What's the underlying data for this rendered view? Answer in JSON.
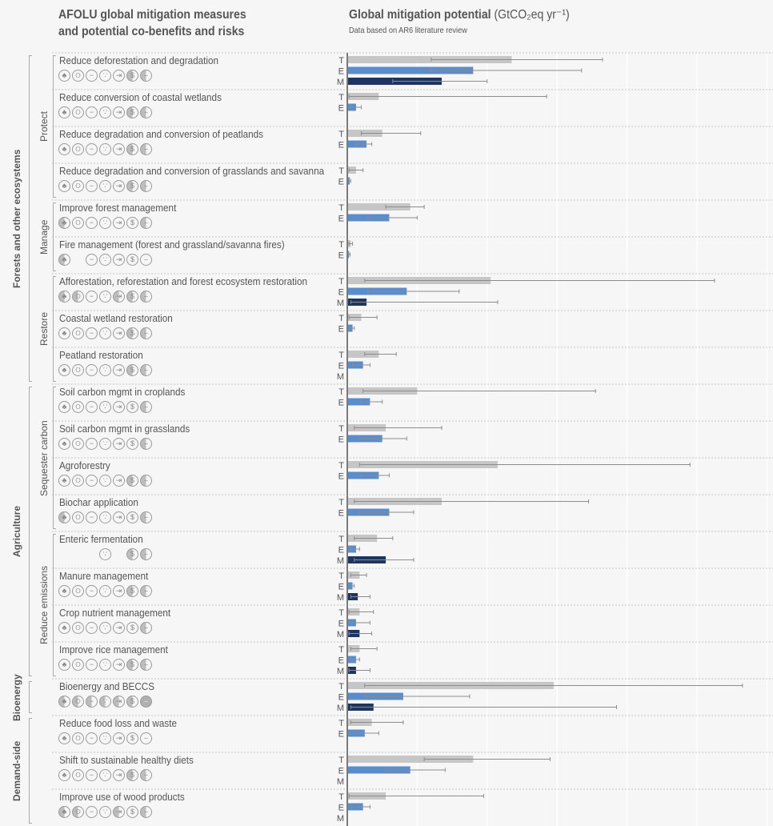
{
  "left_header": {
    "line1": "AFOLU global mitigation measures",
    "line2": "and potential co-benefits and risks"
  },
  "right_header": {
    "title": "Global mitigation potential",
    "unit": "(GtCO₂eq yr⁻¹)",
    "subtitle": "Data based on AR6 literature review"
  },
  "colors": {
    "T": "#c6c6c6",
    "E": "#5b8dcd",
    "M": "#1e3560",
    "error": "#8c8c8c",
    "background": "#f6f6f6"
  },
  "icon_names": [
    "tree-icon",
    "water-drop-icon",
    "land-water-icon",
    "plant-icon",
    "arrow-in-icon",
    "dollar-icon",
    "food-bowl-icon"
  ],
  "icon_glyphs": [
    "♣",
    "୦",
    "−",
    "∵",
    "⇥",
    "$",
    "⌣"
  ],
  "groups": [
    {
      "label": "Forests and other ecosystems",
      "rows": [
        0,
        8
      ]
    },
    {
      "label": "Agriculture",
      "rows": [
        9,
        16
      ]
    },
    {
      "label": "Bioenergy",
      "rows": [
        17,
        17
      ]
    },
    {
      "label": "Demand-side",
      "rows": [
        18,
        20
      ]
    }
  ],
  "subgroups": [
    {
      "label": "Protect",
      "rows": [
        0,
        3
      ]
    },
    {
      "label": "Manage",
      "rows": [
        4,
        5
      ]
    },
    {
      "label": "Restore",
      "rows": [
        6,
        8
      ]
    },
    {
      "label": "Sequester carbon",
      "rows": [
        9,
        12
      ]
    },
    {
      "label": "Reduce emissions",
      "rows": [
        13,
        16
      ]
    }
  ],
  "chart_data": {
    "type": "bar",
    "orientation": "horizontal",
    "title": "Global mitigation potential",
    "unit": "GtCO2eq yr-1",
    "xlim": [
      0,
      12
    ],
    "grid": true,
    "series_keys": [
      "T",
      "E",
      "M"
    ],
    "icon_state_legend": {
      "o": "outline",
      "h": "half shaded",
      "f": "full shaded",
      "-": "absent"
    },
    "rows": [
      {
        "label": "Reduce deforestation and degradation",
        "icons": "ooooohh",
        "T": [
          4.7,
          2.4,
          7.3
        ],
        "E": [
          3.6,
          2.4,
          6.7
        ],
        "M": [
          2.7,
          1.3,
          4.0
        ]
      },
      {
        "label": "Reduce conversion of coastal wetlands",
        "icons": "ooooohh",
        "T": [
          0.9,
          0.05,
          5.7
        ],
        "E": [
          0.25,
          0.1,
          0.4
        ]
      },
      {
        "label": "Reduce degradation and conversion of peatlands",
        "icons": "ooooohh",
        "T": [
          1.0,
          0.4,
          2.1
        ],
        "E": [
          0.55,
          0.25,
          0.7
        ]
      },
      {
        "label": "Reduce degradation and conversion of grasslands and savanna",
        "icons": "ooooohh",
        "T": [
          0.25,
          0.05,
          0.45
        ],
        "E": [
          0.07,
          0.05,
          0.1
        ]
      },
      {
        "label": "Improve forest management",
        "icons": "hooooohh",
        "T": [
          1.8,
          1.1,
          2.2
        ],
        "E": [
          1.2,
          0.6,
          2.0
        ]
      },
      {
        "label": "Fire management (forest and grassland/savanna fires)",
        "icons": "h-ooooo",
        "T": [
          0.1,
          0.05,
          0.15
        ],
        "E": [
          0.05,
          0.03,
          0.08
        ]
      },
      {
        "label": "Afforestation, reforestation and forest ecosystem restoration",
        "icons": "hhoohhh",
        "T": [
          4.1,
          0.5,
          10.5
        ],
        "E": [
          1.7,
          0.6,
          3.2
        ],
        "M": [
          0.55,
          0.1,
          4.3
        ]
      },
      {
        "label": "Coastal wetland restoration",
        "icons": "ooooohh",
        "T": [
          0.4,
          0.05,
          0.85
        ],
        "E": [
          0.15,
          0.05,
          0.2
        ]
      },
      {
        "label": "Peatland restoration",
        "icons": "ooooohh",
        "T": [
          0.9,
          0.5,
          1.4
        ],
        "E": [
          0.45,
          0.15,
          0.65
        ],
        "M": null
      },
      {
        "label": "Soil carbon mgmt in croplands",
        "icons": "ooooooh",
        "T": [
          2.0,
          0.45,
          7.1
        ],
        "E": [
          0.65,
          0.4,
          1.0
        ]
      },
      {
        "label": "Soil carbon mgmt in grasslands",
        "icons": "ooooooh",
        "T": [
          1.1,
          0.2,
          2.7
        ],
        "E": [
          1.0,
          0.35,
          1.7
        ]
      },
      {
        "label": "Agroforestry",
        "icons": "ooooohh",
        "T": [
          4.3,
          0.35,
          9.8
        ],
        "E": [
          0.9,
          0.4,
          1.2
        ]
      },
      {
        "label": "Biochar application",
        "icons": "hoooooho",
        "T": [
          2.7,
          0.2,
          6.9
        ],
        "E": [
          1.2,
          0.35,
          1.9
        ]
      },
      {
        "label": "Enteric fermentation",
        "icons": "---o-hh",
        "T": [
          0.85,
          0.2,
          1.3
        ],
        "E": [
          0.25,
          0.1,
          0.35
        ],
        "M": [
          1.1,
          0.2,
          1.9
        ]
      },
      {
        "label": "Manure management",
        "icons": "ooooohh",
        "T": [
          0.35,
          0.1,
          0.55
        ],
        "E": [
          0.15,
          0.1,
          0.2
        ],
        "M": [
          0.3,
          0.1,
          0.65
        ]
      },
      {
        "label": "Crop nutrient management",
        "icons": "ooooooh",
        "T": [
          0.35,
          0.05,
          0.75
        ],
        "E": [
          0.25,
          0.05,
          0.65
        ],
        "M": [
          0.35,
          0.05,
          0.7
        ]
      },
      {
        "label": "Improve rice management",
        "icons": "ooooohh",
        "T": [
          0.35,
          0.1,
          0.85
        ],
        "E": [
          0.25,
          0.1,
          0.35
        ],
        "M": [
          0.25,
          0.05,
          0.65
        ]
      },
      {
        "label": "Bioenergy and BECCS",
        "icons": "hhhhhhf",
        "T": [
          5.9,
          0.5,
          11.3
        ],
        "E": [
          1.6,
          0.5,
          3.5
        ],
        "M": [
          0.75,
          0.1,
          7.7
        ]
      },
      {
        "label": "Reduce food loss and waste",
        "icons": "ooooooo",
        "T": [
          0.7,
          0.1,
          1.6
        ],
        "E": [
          0.5,
          0.05,
          0.9
        ]
      },
      {
        "label": "Shift to sustainable healthy diets",
        "icons": "ooooohh",
        "T": [
          3.6,
          2.2,
          5.8
        ],
        "E": [
          1.8,
          1.1,
          2.8
        ],
        "M": null
      },
      {
        "label": "Improve use of wood products",
        "icons": "hhoohoh",
        "T": [
          1.1,
          0.05,
          3.9
        ],
        "E": [
          0.45,
          0.1,
          0.65
        ],
        "M": null
      }
    ]
  }
}
